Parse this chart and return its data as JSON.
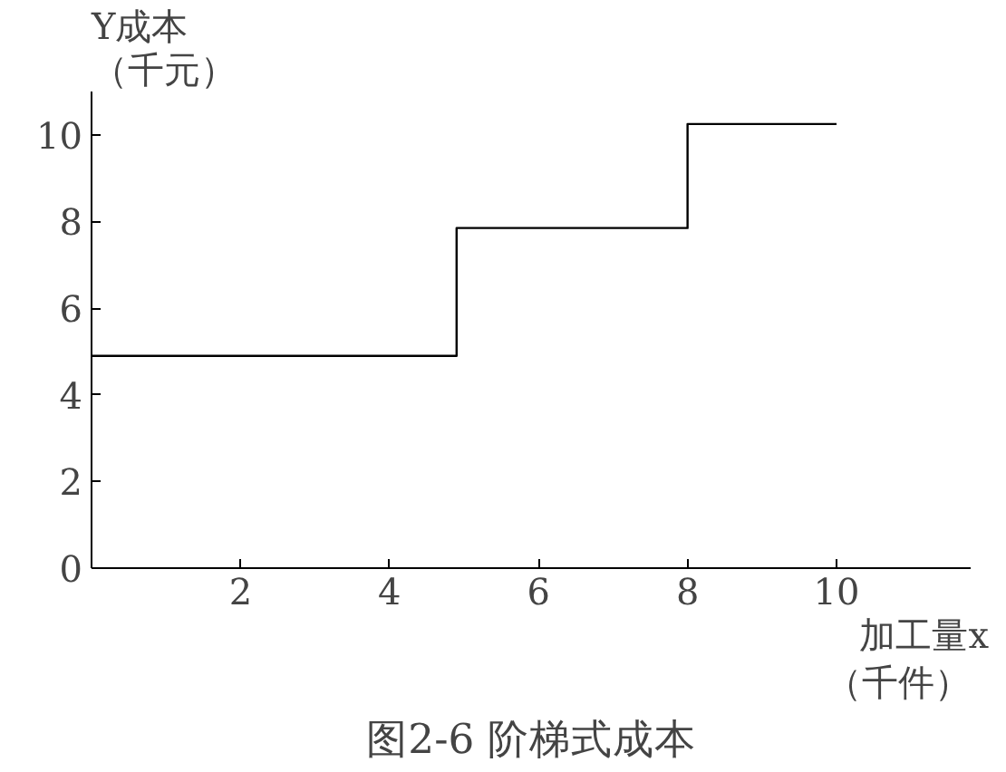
{
  "chart_data": {
    "type": "step",
    "title": "图2-6 阶梯式成本",
    "xlabel": "加工量x（千件）",
    "ylabel": "Y成本（千元）",
    "x": [
      0,
      4.9,
      8,
      10
    ],
    "series": [
      {
        "color": "#000000",
        "values": [
          4.9,
          7.85,
          10.25,
          10.25
        ]
      }
    ],
    "xlim": [
      0,
      11.8
    ],
    "ylim": [
      0,
      11
    ],
    "xticks": [
      2,
      4,
      6,
      8,
      10
    ],
    "yticks": [
      0,
      2,
      4,
      6,
      8,
      10
    ],
    "grid": false
  }
}
